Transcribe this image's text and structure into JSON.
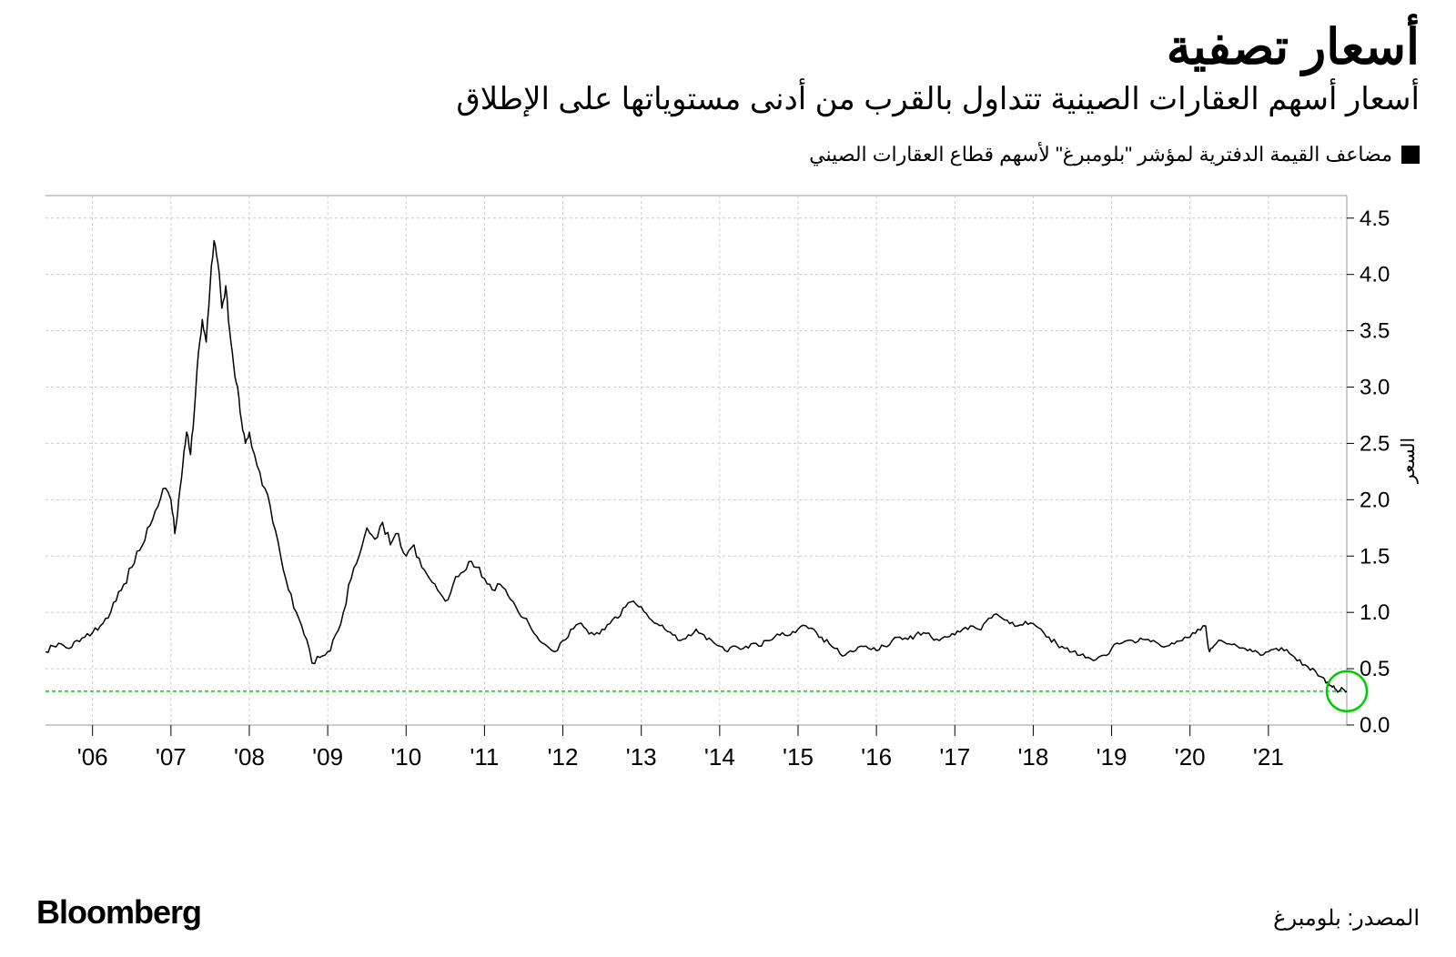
{
  "header": {
    "title": "أسعار تصفية",
    "subtitle": "أسعار أسهم العقارات الصينية تتداول بالقرب من أدنى مستوياتها على الإطلاق"
  },
  "legend": {
    "swatch_color": "#000000",
    "label": "مضاعف القيمة الدفترية لمؤشر \"بلومبرغ\" لأسهم قطاع العقارات الصيني"
  },
  "chart": {
    "type": "line",
    "background_color": "#ffffff",
    "grid_color": "#cccccc",
    "grid_dash": "3,3",
    "border_color": "#999999",
    "line_color": "#000000",
    "line_width": 1.5,
    "highlight_line_color": "#00cc00",
    "highlight_line_dash": "4,3",
    "highlight_circle_color": "#00cc00",
    "highlight_circle_stroke_width": 2.5,
    "highlight_circle_radius": 22,
    "highlight_value": 0.3,
    "y_axis_title": "السعر",
    "ylim": [
      0,
      4.7
    ],
    "yticks": [
      0.0,
      0.5,
      1.0,
      1.5,
      2.0,
      2.5,
      3.0,
      3.5,
      4.0,
      4.5
    ],
    "ytick_labels": [
      "0.0",
      "0.5",
      "1.0",
      "1.5",
      "2.0",
      "2.5",
      "3.0",
      "3.5",
      "4.0",
      "4.5"
    ],
    "xlim": [
      2005.4,
      2022.0
    ],
    "xticks": [
      2006,
      2007,
      2008,
      2009,
      2010,
      2011,
      2012,
      2013,
      2014,
      2015,
      2016,
      2017,
      2018,
      2019,
      2020,
      2021
    ],
    "xtick_labels": [
      "'06",
      "'07",
      "'08",
      "'09",
      "'10",
      "'11",
      "'12",
      "'13",
      "'14",
      "'15",
      "'16",
      "'17",
      "'18",
      "'19",
      "'20",
      "'21"
    ],
    "label_fontsize": 26,
    "series": [
      [
        2005.4,
        0.65
      ],
      [
        2005.5,
        0.7
      ],
      [
        2005.6,
        0.72
      ],
      [
        2005.7,
        0.68
      ],
      [
        2005.8,
        0.75
      ],
      [
        2005.9,
        0.78
      ],
      [
        2006.0,
        0.82
      ],
      [
        2006.1,
        0.88
      ],
      [
        2006.2,
        0.95
      ],
      [
        2006.3,
        1.1
      ],
      [
        2006.4,
        1.25
      ],
      [
        2006.5,
        1.4
      ],
      [
        2006.6,
        1.55
      ],
      [
        2006.7,
        1.75
      ],
      [
        2006.8,
        1.9
      ],
      [
        2006.9,
        2.1
      ],
      [
        2007.0,
        2.0
      ],
      [
        2007.05,
        1.7
      ],
      [
        2007.1,
        2.0
      ],
      [
        2007.15,
        2.3
      ],
      [
        2007.2,
        2.6
      ],
      [
        2007.25,
        2.4
      ],
      [
        2007.3,
        2.8
      ],
      [
        2007.35,
        3.3
      ],
      [
        2007.4,
        3.6
      ],
      [
        2007.45,
        3.4
      ],
      [
        2007.5,
        3.9
      ],
      [
        2007.55,
        4.3
      ],
      [
        2007.6,
        4.1
      ],
      [
        2007.65,
        3.7
      ],
      [
        2007.7,
        3.9
      ],
      [
        2007.75,
        3.5
      ],
      [
        2007.8,
        3.2
      ],
      [
        2007.85,
        3.0
      ],
      [
        2007.9,
        2.7
      ],
      [
        2007.95,
        2.5
      ],
      [
        2008.0,
        2.6
      ],
      [
        2008.1,
        2.3
      ],
      [
        2008.2,
        2.1
      ],
      [
        2008.3,
        1.8
      ],
      [
        2008.4,
        1.5
      ],
      [
        2008.5,
        1.2
      ],
      [
        2008.6,
        1.0
      ],
      [
        2008.7,
        0.8
      ],
      [
        2008.8,
        0.55
      ],
      [
        2008.9,
        0.6
      ],
      [
        2009.0,
        0.65
      ],
      [
        2009.1,
        0.8
      ],
      [
        2009.2,
        1.0
      ],
      [
        2009.3,
        1.3
      ],
      [
        2009.4,
        1.5
      ],
      [
        2009.5,
        1.75
      ],
      [
        2009.6,
        1.65
      ],
      [
        2009.7,
        1.8
      ],
      [
        2009.8,
        1.6
      ],
      [
        2009.9,
        1.7
      ],
      [
        2010.0,
        1.5
      ],
      [
        2010.1,
        1.6
      ],
      [
        2010.2,
        1.4
      ],
      [
        2010.3,
        1.3
      ],
      [
        2010.4,
        1.2
      ],
      [
        2010.5,
        1.1
      ],
      [
        2010.6,
        1.25
      ],
      [
        2010.7,
        1.35
      ],
      [
        2010.8,
        1.45
      ],
      [
        2010.9,
        1.4
      ],
      [
        2011.0,
        1.3
      ],
      [
        2011.1,
        1.2
      ],
      [
        2011.2,
        1.25
      ],
      [
        2011.3,
        1.15
      ],
      [
        2011.4,
        1.05
      ],
      [
        2011.5,
        0.95
      ],
      [
        2011.6,
        0.85
      ],
      [
        2011.7,
        0.75
      ],
      [
        2011.8,
        0.7
      ],
      [
        2011.9,
        0.65
      ],
      [
        2012.0,
        0.75
      ],
      [
        2012.1,
        0.85
      ],
      [
        2012.2,
        0.9
      ],
      [
        2012.3,
        0.85
      ],
      [
        2012.4,
        0.8
      ],
      [
        2012.5,
        0.85
      ],
      [
        2012.6,
        0.9
      ],
      [
        2012.7,
        0.95
      ],
      [
        2012.8,
        1.05
      ],
      [
        2012.9,
        1.1
      ],
      [
        2013.0,
        1.05
      ],
      [
        2013.1,
        0.95
      ],
      [
        2013.2,
        0.9
      ],
      [
        2013.3,
        0.85
      ],
      [
        2013.4,
        0.8
      ],
      [
        2013.5,
        0.75
      ],
      [
        2013.6,
        0.8
      ],
      [
        2013.7,
        0.85
      ],
      [
        2013.8,
        0.8
      ],
      [
        2013.9,
        0.75
      ],
      [
        2014.0,
        0.7
      ],
      [
        2014.1,
        0.65
      ],
      [
        2014.2,
        0.7
      ],
      [
        2014.3,
        0.68
      ],
      [
        2014.4,
        0.72
      ],
      [
        2014.5,
        0.7
      ],
      [
        2014.6,
        0.75
      ],
      [
        2014.7,
        0.78
      ],
      [
        2014.8,
        0.82
      ],
      [
        2014.9,
        0.8
      ],
      [
        2015.0,
        0.85
      ],
      [
        2015.1,
        0.88
      ],
      [
        2015.2,
        0.85
      ],
      [
        2015.3,
        0.78
      ],
      [
        2015.4,
        0.72
      ],
      [
        2015.5,
        0.68
      ],
      [
        2015.6,
        0.62
      ],
      [
        2015.7,
        0.65
      ],
      [
        2015.8,
        0.7
      ],
      [
        2015.9,
        0.68
      ],
      [
        2016.0,
        0.66
      ],
      [
        2016.1,
        0.7
      ],
      [
        2016.2,
        0.75
      ],
      [
        2016.3,
        0.78
      ],
      [
        2016.4,
        0.76
      ],
      [
        2016.5,
        0.8
      ],
      [
        2016.6,
        0.82
      ],
      [
        2016.7,
        0.78
      ],
      [
        2016.8,
        0.75
      ],
      [
        2016.9,
        0.78
      ],
      [
        2017.0,
        0.8
      ],
      [
        2017.1,
        0.85
      ],
      [
        2017.2,
        0.88
      ],
      [
        2017.3,
        0.85
      ],
      [
        2017.4,
        0.92
      ],
      [
        2017.5,
        0.98
      ],
      [
        2017.6,
        0.95
      ],
      [
        2017.7,
        0.9
      ],
      [
        2017.8,
        0.88
      ],
      [
        2017.9,
        0.92
      ],
      [
        2018.0,
        0.9
      ],
      [
        2018.1,
        0.85
      ],
      [
        2018.2,
        0.78
      ],
      [
        2018.3,
        0.72
      ],
      [
        2018.4,
        0.68
      ],
      [
        2018.5,
        0.65
      ],
      [
        2018.6,
        0.62
      ],
      [
        2018.7,
        0.6
      ],
      [
        2018.8,
        0.58
      ],
      [
        2018.9,
        0.62
      ],
      [
        2019.0,
        0.68
      ],
      [
        2019.1,
        0.72
      ],
      [
        2019.2,
        0.75
      ],
      [
        2019.3,
        0.73
      ],
      [
        2019.4,
        0.76
      ],
      [
        2019.5,
        0.74
      ],
      [
        2019.6,
        0.72
      ],
      [
        2019.7,
        0.7
      ],
      [
        2019.8,
        0.72
      ],
      [
        2019.9,
        0.75
      ],
      [
        2020.0,
        0.78
      ],
      [
        2020.1,
        0.85
      ],
      [
        2020.2,
        0.88
      ],
      [
        2020.25,
        0.65
      ],
      [
        2020.3,
        0.7
      ],
      [
        2020.4,
        0.75
      ],
      [
        2020.5,
        0.72
      ],
      [
        2020.6,
        0.7
      ],
      [
        2020.7,
        0.68
      ],
      [
        2020.8,
        0.65
      ],
      [
        2020.9,
        0.62
      ],
      [
        2021.0,
        0.65
      ],
      [
        2021.1,
        0.68
      ],
      [
        2021.2,
        0.66
      ],
      [
        2021.3,
        0.62
      ],
      [
        2021.4,
        0.58
      ],
      [
        2021.5,
        0.52
      ],
      [
        2021.6,
        0.48
      ],
      [
        2021.7,
        0.42
      ],
      [
        2021.75,
        0.38
      ],
      [
        2021.8,
        0.35
      ],
      [
        2021.85,
        0.32
      ],
      [
        2021.9,
        0.3
      ],
      [
        2021.95,
        0.32
      ],
      [
        2022.0,
        0.3
      ]
    ]
  },
  "footer": {
    "brand": "Bloomberg",
    "source": "المصدر: بلومبرغ"
  }
}
